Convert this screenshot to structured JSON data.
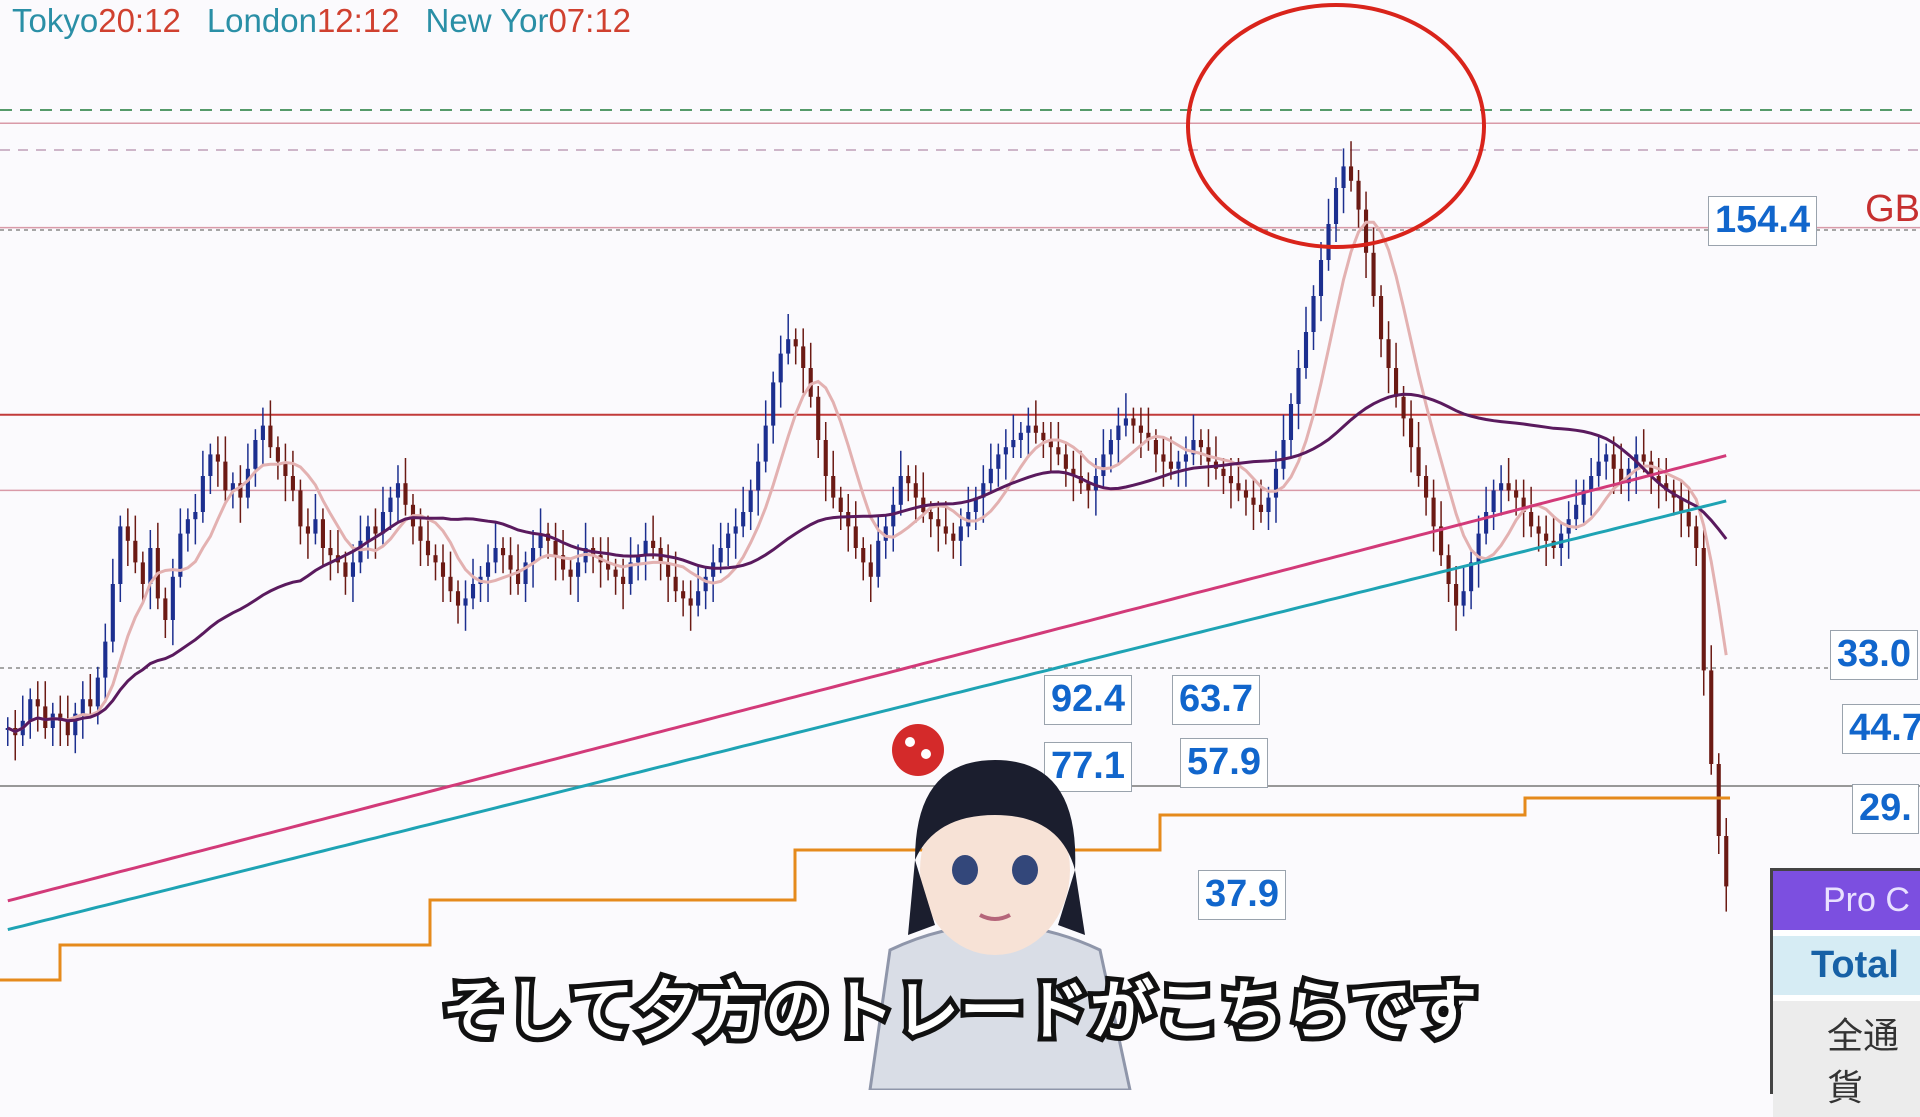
{
  "sessions": [
    {
      "name": "Tokyo",
      "time": "20:12"
    },
    {
      "name": "London",
      "time": "12:12"
    },
    {
      "name": "New Yor",
      "time": "07:12"
    }
  ],
  "pair_label": "GB",
  "pip_labels": [
    {
      "id": "a",
      "text": "154.4"
    },
    {
      "id": "b",
      "text": "33.0"
    },
    {
      "id": "c",
      "text": "44.7"
    },
    {
      "id": "d",
      "text": "29."
    },
    {
      "id": "e",
      "text": "92.4"
    },
    {
      "id": "f",
      "text": "63.7"
    },
    {
      "id": "g",
      "text": "77.1"
    },
    {
      "id": "h",
      "text": "57.9"
    },
    {
      "id": "i",
      "text": "37.9"
    }
  ],
  "panel": {
    "title": "Pro C",
    "total": "Total",
    "row": "全通貨"
  },
  "subtitle": "そして夕方のトレードがこちらです",
  "colors": {
    "up_candle": "#1c2f8f",
    "down_candle": "#6b1a14",
    "ma_fast": "#e3b1b1",
    "ma_mid": "#5a1a5e",
    "ma_slow": "#d23a79",
    "ma_long": "#1ea3b4",
    "step_line": "#e58a1c",
    "highlight_circle": "#d9241b"
  },
  "chart_data": {
    "type": "candlestick",
    "y_range": [
      0,
      100
    ],
    "levels": [
      94,
      79.5,
      53.5,
      43
    ],
    "closes": [
      10,
      9,
      11,
      14,
      13,
      10,
      12,
      11,
      9,
      12,
      14,
      13,
      17,
      22,
      30,
      38,
      36,
      33,
      30,
      35,
      28,
      25,
      31,
      37,
      39,
      40,
      45,
      48,
      47,
      43,
      44,
      42,
      46,
      50,
      52,
      49,
      47,
      45,
      43,
      38,
      37,
      39,
      35,
      34,
      33,
      31,
      33,
      36,
      38,
      37,
      40,
      42,
      44,
      41,
      38,
      36,
      34,
      33,
      31,
      29,
      27,
      28,
      30,
      31,
      33,
      35,
      34,
      32,
      30,
      33,
      35,
      37,
      36,
      34,
      32,
      31,
      33,
      35,
      34,
      33,
      32,
      31,
      30,
      33,
      34,
      36,
      35,
      33,
      31,
      29,
      28,
      27,
      29,
      31,
      33,
      35,
      37,
      38,
      40,
      43,
      47,
      52,
      58,
      62,
      64,
      63,
      60,
      56,
      50,
      45,
      42,
      40,
      38,
      35,
      33,
      31,
      36,
      38,
      41,
      45,
      44,
      42,
      40,
      39,
      38,
      37,
      36,
      38,
      40,
      42,
      44,
      46,
      48,
      49,
      50,
      51,
      52,
      51,
      50,
      49,
      48,
      46,
      45,
      44,
      43,
      45,
      48,
      50,
      52,
      53,
      52,
      51,
      50,
      48,
      47,
      46,
      47,
      48,
      50,
      49,
      47,
      46,
      45,
      44,
      43,
      42,
      41,
      40,
      42,
      46,
      50,
      55,
      60,
      65,
      70,
      75,
      80,
      85,
      88,
      86,
      82,
      76,
      70,
      64,
      60,
      56,
      53,
      49,
      45,
      42,
      38,
      34,
      30,
      27,
      29,
      33,
      37,
      40,
      43,
      44,
      43,
      42,
      40,
      38,
      37,
      36,
      35,
      37,
      39,
      41,
      43,
      45,
      47,
      48,
      46,
      44,
      46,
      48,
      47,
      45,
      44,
      43,
      42,
      40,
      38,
      35,
      18,
      5,
      -5,
      -12
    ]
  }
}
